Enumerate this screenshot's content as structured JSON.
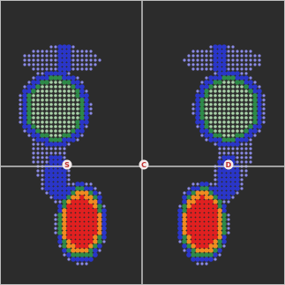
{
  "markers": [
    {
      "label": "S"
    },
    {
      "label": "C"
    },
    {
      "label": "D"
    }
  ]
}
